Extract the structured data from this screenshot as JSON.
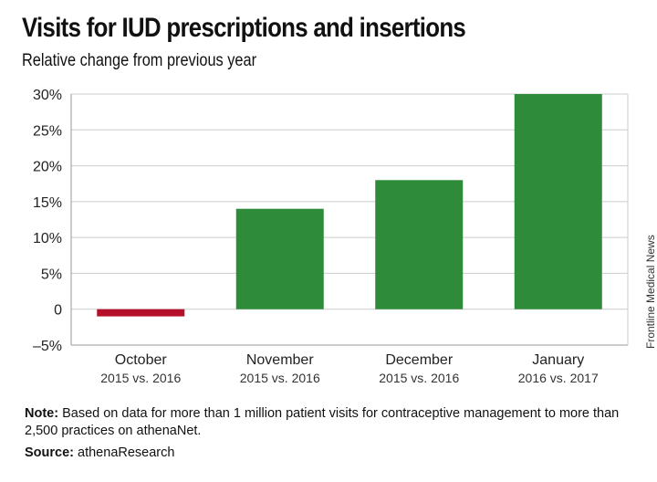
{
  "header": {
    "title": "Visits for IUD prescriptions and insertions",
    "subtitle": "Relative change from previous year"
  },
  "chart_data": {
    "type": "bar",
    "categories": [
      "October",
      "November",
      "December",
      "January"
    ],
    "category_sublabels": [
      "2015 vs. 2016",
      "2015 vs. 2016",
      "2015 vs. 2016",
      "2016 vs. 2017"
    ],
    "values": [
      -1,
      14,
      18,
      30
    ],
    "ylim": [
      -5,
      30
    ],
    "yticks": [
      30,
      25,
      20,
      15,
      10,
      5,
      0,
      -5
    ],
    "ytick_labels": [
      "30%",
      "25%",
      "20%",
      "15%",
      "10%",
      "5%",
      "0",
      "–5%"
    ],
    "grid": true,
    "colors": {
      "positive": "#2e8b3a",
      "negative": "#b5102b",
      "grid": "#cccccc",
      "axis": "#999999"
    }
  },
  "credit": "Frontline Medical News",
  "footer": {
    "note_label": "Note:",
    "note_text": " Based on data for more than 1 million patient visits for contraceptive management to more than 2,500 practices on athenaNet.",
    "source_label": "Source:",
    "source_text": " athenaResearch"
  }
}
